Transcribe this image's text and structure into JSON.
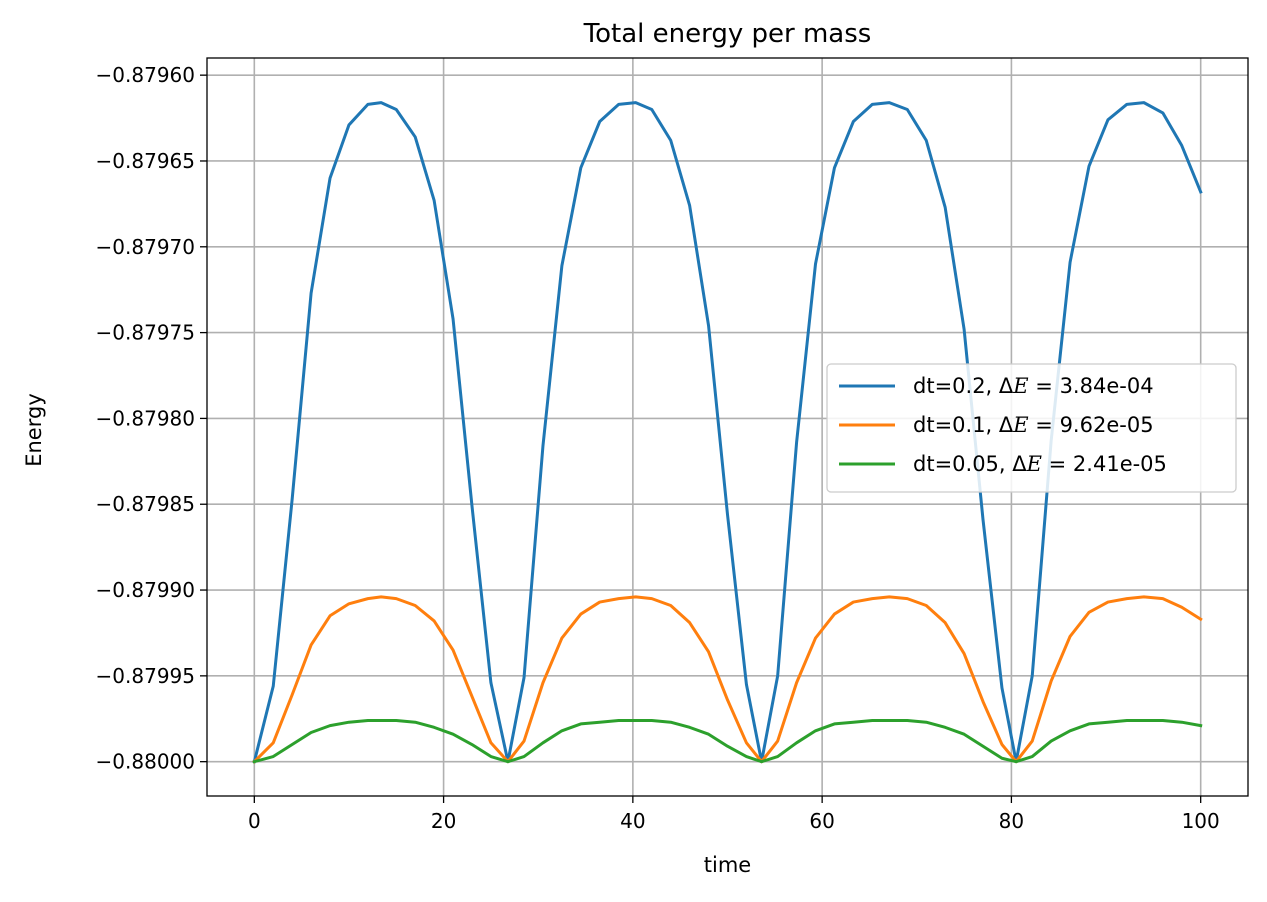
{
  "chart_data": {
    "type": "line",
    "title": "Total energy per mass",
    "xlabel": "time",
    "ylabel": "Energy",
    "xlim": [
      -5,
      105
    ],
    "ylim": [
      -0.88002,
      -0.87959
    ],
    "grid": true,
    "legend_position": "center-right",
    "x_ticks": [
      0,
      20,
      40,
      60,
      80,
      100
    ],
    "x_tick_labels": [
      "0",
      "20",
      "40",
      "60",
      "80",
      "100"
    ],
    "y_ticks": [
      -0.8796,
      -0.87965,
      -0.8797,
      -0.87975,
      -0.8798,
      -0.87985,
      -0.8799,
      -0.87995,
      -0.88
    ],
    "y_tick_labels": [
      "−0.87960",
      "−0.87965",
      "−0.87970",
      "−0.87975",
      "−0.87980",
      "−0.87985",
      "−0.87990",
      "−0.87995",
      "−0.88000"
    ],
    "series": [
      {
        "name": "dt=0.2, ΔE = 3.84e-04",
        "legend_prefix": "dt=0.2, Δ",
        "legend_var": "E",
        "legend_suffix": " = 3.84e-04",
        "color": "#1f77b4",
        "x": [
          0,
          2,
          4,
          6,
          8,
          10,
          12,
          13.4,
          15,
          17,
          19,
          21,
          23,
          25,
          26.8,
          28.5,
          30.5,
          32.5,
          34.5,
          36.5,
          38.5,
          40.3,
          42,
          44,
          46,
          48,
          50,
          52,
          53.6,
          55.3,
          57.3,
          59.3,
          61.3,
          63.3,
          65.3,
          67.1,
          69,
          71,
          73,
          75,
          77,
          79,
          80.5,
          82.2,
          84.2,
          86.2,
          88.2,
          90.2,
          92.2,
          94.0,
          96,
          98,
          100
        ],
        "y": [
          -0.88,
          -0.879956,
          -0.879847,
          -0.879727,
          -0.87966,
          -0.879629,
          -0.879617,
          -0.879616,
          -0.87962,
          -0.879636,
          -0.879673,
          -0.879742,
          -0.879851,
          -0.879954,
          -0.88,
          -0.879951,
          -0.879816,
          -0.879711,
          -0.879654,
          -0.879627,
          -0.879617,
          -0.879616,
          -0.87962,
          -0.879638,
          -0.879676,
          -0.879746,
          -0.879856,
          -0.879955,
          -0.88,
          -0.87995,
          -0.879814,
          -0.87971,
          -0.879654,
          -0.879627,
          -0.879617,
          -0.879616,
          -0.87962,
          -0.879638,
          -0.879677,
          -0.879748,
          -0.879859,
          -0.879957,
          -0.88,
          -0.87995,
          -0.879813,
          -0.879709,
          -0.879653,
          -0.879626,
          -0.879617,
          -0.879616,
          -0.879622,
          -0.879641,
          -0.879668
        ]
      },
      {
        "name": "dt=0.1, ΔE = 9.62e-05",
        "legend_prefix": "dt=0.1, Δ",
        "legend_var": "E",
        "legend_suffix": " = 9.62e-05",
        "color": "#ff7f0e",
        "x": [
          0,
          2,
          4,
          6,
          8,
          10,
          12,
          13.4,
          15,
          17,
          19,
          21,
          23,
          25,
          26.8,
          28.5,
          30.5,
          32.5,
          34.5,
          36.5,
          38.5,
          40.3,
          42,
          44,
          46,
          48,
          50,
          52,
          53.6,
          55.3,
          57.3,
          59.3,
          61.3,
          63.3,
          65.3,
          67.1,
          69,
          71,
          73,
          75,
          77,
          79,
          80.5,
          82.2,
          84.2,
          86.2,
          88.2,
          90.2,
          92.2,
          94.0,
          96,
          98,
          100
        ],
        "y": [
          -0.88,
          -0.879989,
          -0.879961,
          -0.879932,
          -0.879915,
          -0.879908,
          -0.879905,
          -0.879904,
          -0.879905,
          -0.879909,
          -0.879918,
          -0.879935,
          -0.879962,
          -0.879989,
          -0.88,
          -0.879988,
          -0.879954,
          -0.879928,
          -0.879914,
          -0.879907,
          -0.879905,
          -0.879904,
          -0.879905,
          -0.879909,
          -0.879919,
          -0.879936,
          -0.879964,
          -0.879989,
          -0.88,
          -0.879988,
          -0.879954,
          -0.879928,
          -0.879914,
          -0.879907,
          -0.879905,
          -0.879904,
          -0.879905,
          -0.879909,
          -0.879919,
          -0.879937,
          -0.879965,
          -0.87999,
          -0.88,
          -0.879988,
          -0.879953,
          -0.879927,
          -0.879913,
          -0.879907,
          -0.879905,
          -0.879904,
          -0.879905,
          -0.87991,
          -0.879917
        ]
      },
      {
        "name": "dt=0.05, ΔE = 2.41e-05",
        "legend_prefix": "dt=0.05, Δ",
        "legend_var": "E",
        "legend_suffix": " = 2.41e-05",
        "color": "#2ca02c",
        "x": [
          0,
          2,
          4,
          6,
          8,
          10,
          12,
          13.4,
          15,
          17,
          19,
          21,
          23,
          25,
          26.8,
          28.5,
          30.5,
          32.5,
          34.5,
          36.5,
          38.5,
          40.3,
          42,
          44,
          46,
          48,
          50,
          52,
          53.6,
          55.3,
          57.3,
          59.3,
          61.3,
          63.3,
          65.3,
          67.1,
          69,
          71,
          73,
          75,
          77,
          79,
          80.5,
          82.2,
          84.2,
          86.2,
          88.2,
          90.2,
          92.2,
          94.0,
          96,
          98,
          100
        ],
        "y": [
          -0.88,
          -0.879997,
          -0.87999,
          -0.879983,
          -0.879979,
          -0.879977,
          -0.879976,
          -0.879976,
          -0.879976,
          -0.879977,
          -0.87998,
          -0.879984,
          -0.87999,
          -0.879997,
          -0.88,
          -0.879997,
          -0.879989,
          -0.879982,
          -0.879978,
          -0.879977,
          -0.879976,
          -0.879976,
          -0.879976,
          -0.879977,
          -0.87998,
          -0.879984,
          -0.879991,
          -0.879997,
          -0.88,
          -0.879997,
          -0.879989,
          -0.879982,
          -0.879978,
          -0.879977,
          -0.879976,
          -0.879976,
          -0.879976,
          -0.879977,
          -0.87998,
          -0.879984,
          -0.879991,
          -0.879998,
          -0.88,
          -0.879997,
          -0.879988,
          -0.879982,
          -0.879978,
          -0.879977,
          -0.879976,
          -0.879976,
          -0.879976,
          -0.879977,
          -0.879979
        ]
      }
    ]
  }
}
